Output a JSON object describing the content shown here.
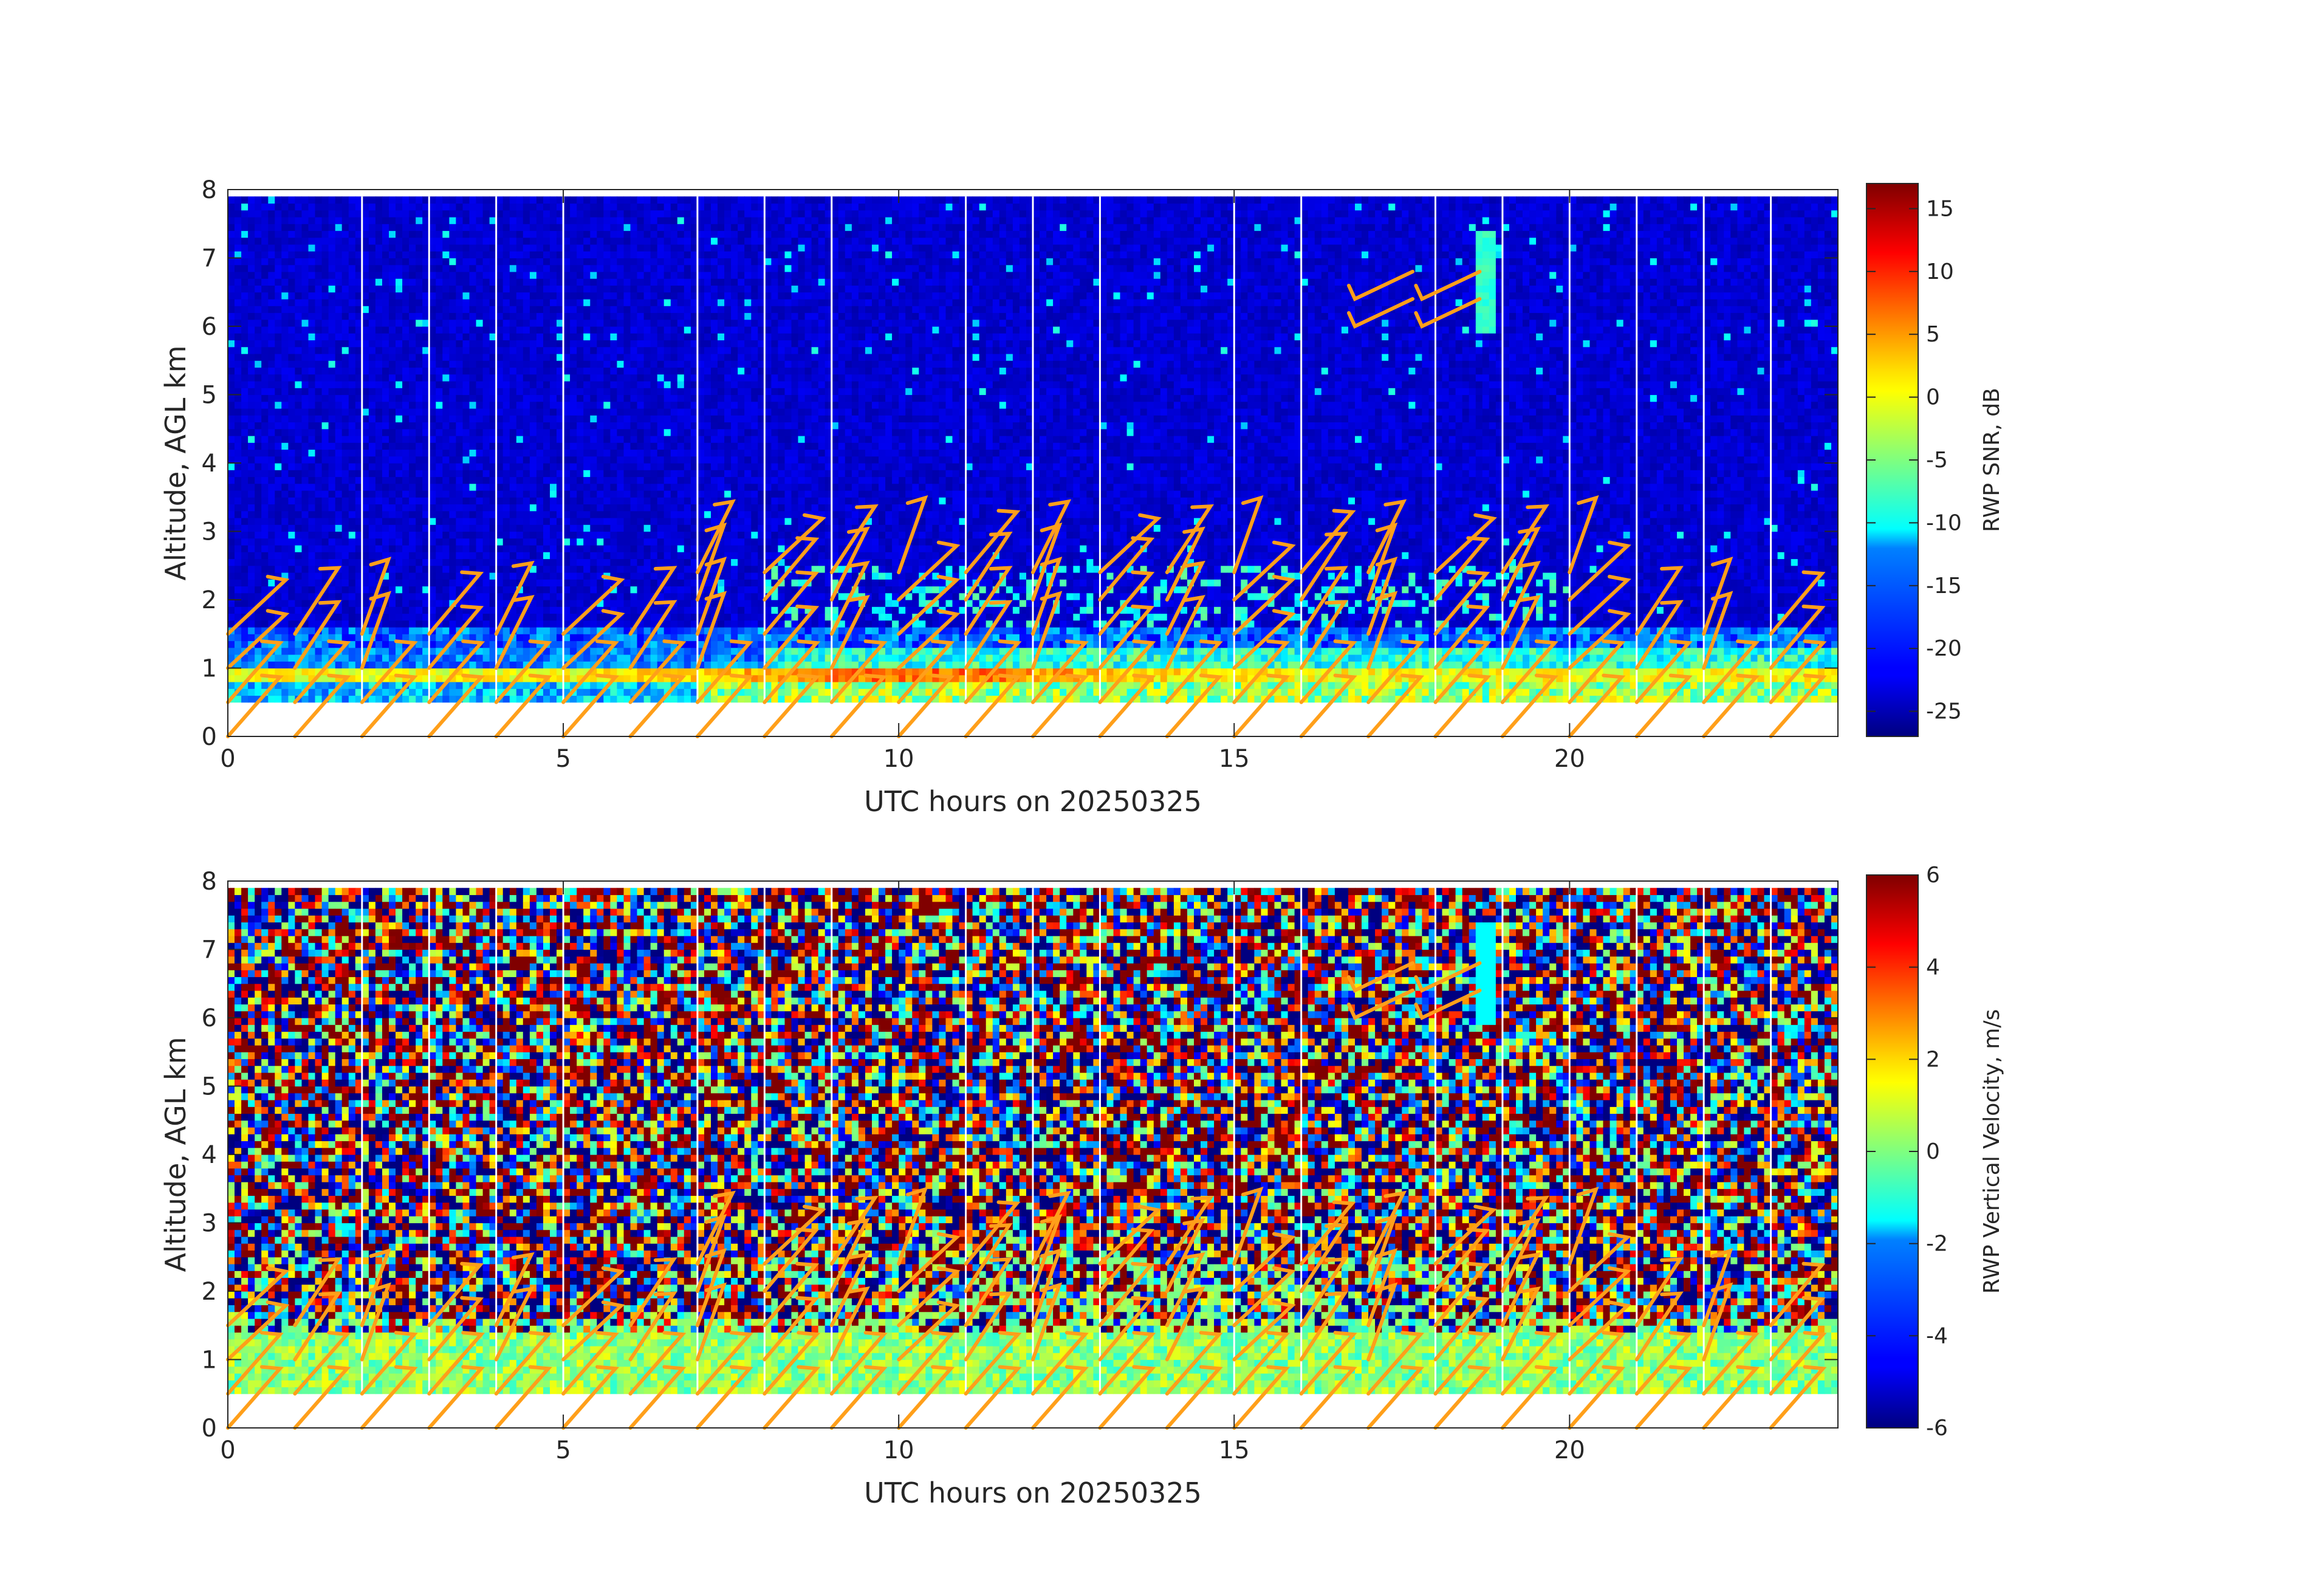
{
  "chart_data": [
    {
      "type": "heatmap",
      "title": "",
      "xlabel": "UTC hours on 20250325",
      "ylabel": "Altitude, AGL km",
      "xlim": [
        0,
        24
      ],
      "ylim": [
        0,
        8
      ],
      "x_ticks": [
        0,
        5,
        10,
        15,
        20
      ],
      "y_ticks": [
        0,
        1,
        2,
        3,
        4,
        5,
        6,
        7,
        8
      ],
      "colorbar": {
        "label": "RWP SNR, dB",
        "range": [
          -27,
          17
        ],
        "ticks": [
          15,
          10,
          5,
          0,
          -5,
          -10,
          -15,
          -20,
          -25
        ]
      },
      "field": "snr",
      "data_bottom_km": 0.5,
      "data_top_km": 7.9,
      "gap_lines_hours": [
        2,
        3,
        4,
        5,
        7,
        8,
        9,
        11,
        12,
        13,
        15,
        16,
        18,
        19,
        20,
        21,
        22,
        23
      ],
      "series": [
        {
          "name": "",
          "feature": "strong low-level layer near 0.9 km (red band, peak ~10 dB near 10 UTC)"
        },
        {
          "name": "",
          "feature": "elevated echo layer 1.7-2.5 km between 8 and 20 UTC"
        }
      ],
      "wind_barbs_color": "#ff9f1a"
    },
    {
      "type": "heatmap",
      "title": "",
      "xlabel": "UTC hours on 20250325",
      "ylabel": "Altitude, AGL km",
      "xlim": [
        0,
        24
      ],
      "ylim": [
        0,
        8
      ],
      "x_ticks": [
        0,
        5,
        10,
        15,
        20
      ],
      "y_ticks": [
        0,
        1,
        2,
        3,
        4,
        5,
        6,
        7,
        8
      ],
      "colorbar": {
        "label": "RWP Vertical Velocity, m/s",
        "range": [
          -6,
          6
        ],
        "ticks": [
          6,
          4,
          2,
          0,
          -2,
          -4,
          -6
        ]
      },
      "field": "w",
      "data_bottom_km": 0.5,
      "data_top_km": 7.9,
      "gap_lines_hours": [
        2,
        3,
        4,
        5,
        7,
        8,
        9,
        11,
        12,
        13,
        15,
        16,
        18,
        19,
        20,
        21,
        22,
        23
      ],
      "series": [
        {
          "name": "",
          "feature": "near-zero velocity (green) in boundary layer 0.5-1.4 km"
        },
        {
          "name": "",
          "feature": "noise (random) above"
        }
      ],
      "wind_barbs_color": "#ff9f1a"
    }
  ],
  "wind_barbs": {
    "hours": [
      0.1,
      1.1,
      2.1,
      3.1,
      4.1,
      5.1,
      6.1,
      7.1,
      8.1,
      9.1,
      10.1,
      11.1,
      12.1,
      13.1,
      14.1,
      15.1,
      16.1,
      17.1,
      18.1,
      19.1,
      20.1,
      21.1,
      22.1,
      23.1
    ],
    "levels_km": [
      0.0,
      0.5,
      1.0,
      1.5,
      2.0,
      2.4,
      6.0,
      6.4
    ],
    "upper_barbs_hours": [
      16.8,
      17.8
    ]
  }
}
